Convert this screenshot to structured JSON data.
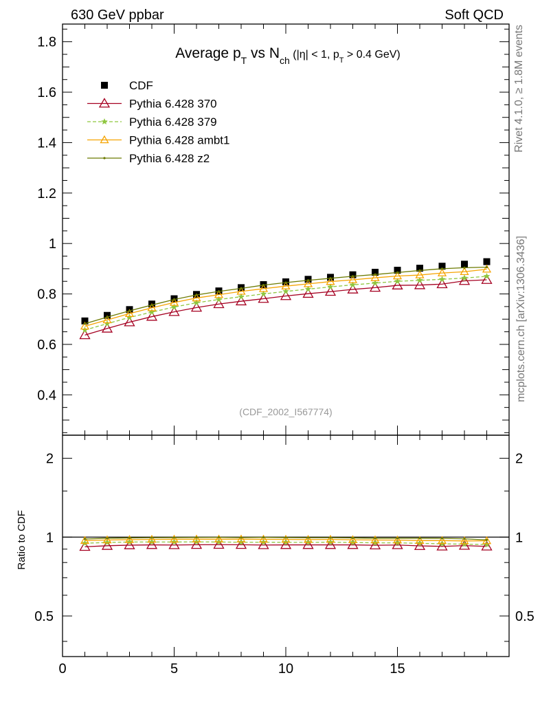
{
  "header": {
    "left": "630 GeV ppbar",
    "right": "Soft QCD"
  },
  "side_labels": {
    "rivet": "Rivet 4.1.0, ≥ 1.8M events",
    "mcplots": "mcplots.cern.ch [arXiv:1306.3436]"
  },
  "title": {
    "main": "Average p",
    "sub_T": "T",
    "vs": " vs N",
    "sub_ch": "ch",
    "cuts_a": " (|η| < 1, p",
    "cuts_sub": "T",
    "cuts_b": " > 0.4 GeV)"
  },
  "analysis_id": "(CDF_2002_I567774)",
  "ratio_ylabel": "Ratio to CDF",
  "colors": {
    "cdf": "#000000",
    "p370": "#a50021",
    "p379": "#8ec63f",
    "ambt1": "#f5a300",
    "z2": "#6b7a00"
  },
  "chart_data": [
    {
      "type": "scatter",
      "title": "Average pT vs Nch (|eta| < 1, pT > 0.4 GeV)",
      "xlabel": "",
      "ylabel": "",
      "xlim": [
        0,
        20
      ],
      "ylim": [
        0.24,
        1.87
      ],
      "yticks": [
        0.4,
        0.6,
        0.8,
        1,
        1.2,
        1.4,
        1.6,
        1.8
      ],
      "ytick_labels": [
        "0.4",
        "0.6",
        "0.8",
        "1",
        "1.2",
        "1.4",
        "1.6",
        "1.8"
      ],
      "x": [
        1,
        2,
        3,
        4,
        5,
        6,
        7,
        8,
        9,
        10,
        11,
        12,
        13,
        14,
        15,
        16,
        17,
        18,
        19
      ],
      "series": [
        {
          "name": "CDF",
          "style": "data",
          "values": [
            0.693,
            0.715,
            0.738,
            0.76,
            0.781,
            0.798,
            0.812,
            0.825,
            0.837,
            0.848,
            0.858,
            0.866,
            0.876,
            0.886,
            0.894,
            0.902,
            0.91,
            0.918,
            0.928
          ]
        },
        {
          "name": "Pythia 6.428 370",
          "style": "triangle-open",
          "values": [
            0.637,
            0.663,
            0.688,
            0.71,
            0.729,
            0.746,
            0.76,
            0.771,
            0.781,
            0.792,
            0.801,
            0.809,
            0.818,
            0.825,
            0.834,
            0.835,
            0.839,
            0.852,
            0.856
          ]
        },
        {
          "name": "Pythia 6.428 379",
          "style": "star-dashed",
          "values": [
            0.657,
            0.682,
            0.707,
            0.728,
            0.748,
            0.765,
            0.778,
            0.789,
            0.8,
            0.81,
            0.819,
            0.828,
            0.836,
            0.843,
            0.85,
            0.854,
            0.858,
            0.863,
            0.87
          ]
        },
        {
          "name": "Pythia 6.428 ambt1",
          "style": "triangle-open-solid",
          "values": [
            0.672,
            0.697,
            0.722,
            0.745,
            0.766,
            0.784,
            0.797,
            0.81,
            0.821,
            0.831,
            0.84,
            0.849,
            0.856,
            0.864,
            0.871,
            0.875,
            0.883,
            0.888,
            0.898
          ]
        },
        {
          "name": "Pythia 6.428 z2",
          "style": "dot-solid",
          "values": [
            0.682,
            0.708,
            0.733,
            0.756,
            0.778,
            0.796,
            0.81,
            0.822,
            0.835,
            0.845,
            0.854,
            0.862,
            0.87,
            0.877,
            0.885,
            0.893,
            0.9,
            0.904,
            0.906
          ]
        }
      ]
    },
    {
      "type": "line",
      "title": "Ratio to CDF",
      "ylabel": "Ratio to CDF",
      "yscale": "log",
      "xlim": [
        0,
        20
      ],
      "xticks": [
        0,
        5,
        10,
        15
      ],
      "xtick_labels": [
        "0",
        "5",
        "10",
        "15"
      ],
      "ylim": [
        0.35,
        2.45
      ],
      "yticks": [
        0.5,
        1,
        2
      ],
      "ytick_labels": [
        "0.5",
        "1",
        "2"
      ],
      "x": [
        1,
        2,
        3,
        4,
        5,
        6,
        7,
        8,
        9,
        10,
        11,
        12,
        13,
        14,
        15,
        16,
        17,
        18,
        19
      ],
      "series": [
        {
          "name": "Pythia 6.428 370",
          "values": [
            0.919,
            0.927,
            0.932,
            0.934,
            0.933,
            0.935,
            0.936,
            0.935,
            0.933,
            0.934,
            0.934,
            0.934,
            0.934,
            0.931,
            0.933,
            0.926,
            0.922,
            0.928,
            0.922
          ]
        },
        {
          "name": "Pythia 6.428 379",
          "values": [
            0.948,
            0.954,
            0.958,
            0.958,
            0.958,
            0.959,
            0.958,
            0.956,
            0.956,
            0.955,
            0.955,
            0.956,
            0.954,
            0.951,
            0.951,
            0.947,
            0.943,
            0.94,
            0.938
          ]
        },
        {
          "name": "Pythia 6.428 ambt1",
          "values": [
            0.97,
            0.975,
            0.978,
            0.98,
            0.981,
            0.982,
            0.982,
            0.982,
            0.981,
            0.98,
            0.979,
            0.98,
            0.977,
            0.975,
            0.974,
            0.97,
            0.97,
            0.967,
            0.968
          ]
        },
        {
          "name": "Pythia 6.428 z2",
          "values": [
            0.984,
            0.99,
            0.993,
            0.995,
            0.996,
            0.997,
            0.998,
            0.996,
            0.998,
            0.996,
            0.995,
            0.995,
            0.993,
            0.99,
            0.99,
            0.99,
            0.989,
            0.985,
            0.976
          ]
        }
      ]
    }
  ]
}
